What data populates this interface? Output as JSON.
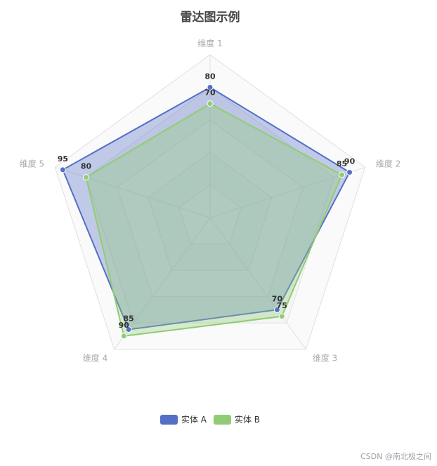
{
  "chart_data": {
    "type": "radar",
    "title": "雷达图示例",
    "indicators": [
      "维度 1",
      "维度 2",
      "维度 3",
      "维度 4",
      "维度 5"
    ],
    "max": 100,
    "series": [
      {
        "name": "实体 A",
        "values": [
          80,
          90,
          70,
          85,
          95
        ],
        "color": "#5470c6"
      },
      {
        "name": "实体 B",
        "values": [
          70,
          85,
          75,
          90,
          80
        ],
        "color": "#91cc75"
      }
    ],
    "legend_position": "bottom-center"
  },
  "watermark": "CSDN @南北极之间"
}
